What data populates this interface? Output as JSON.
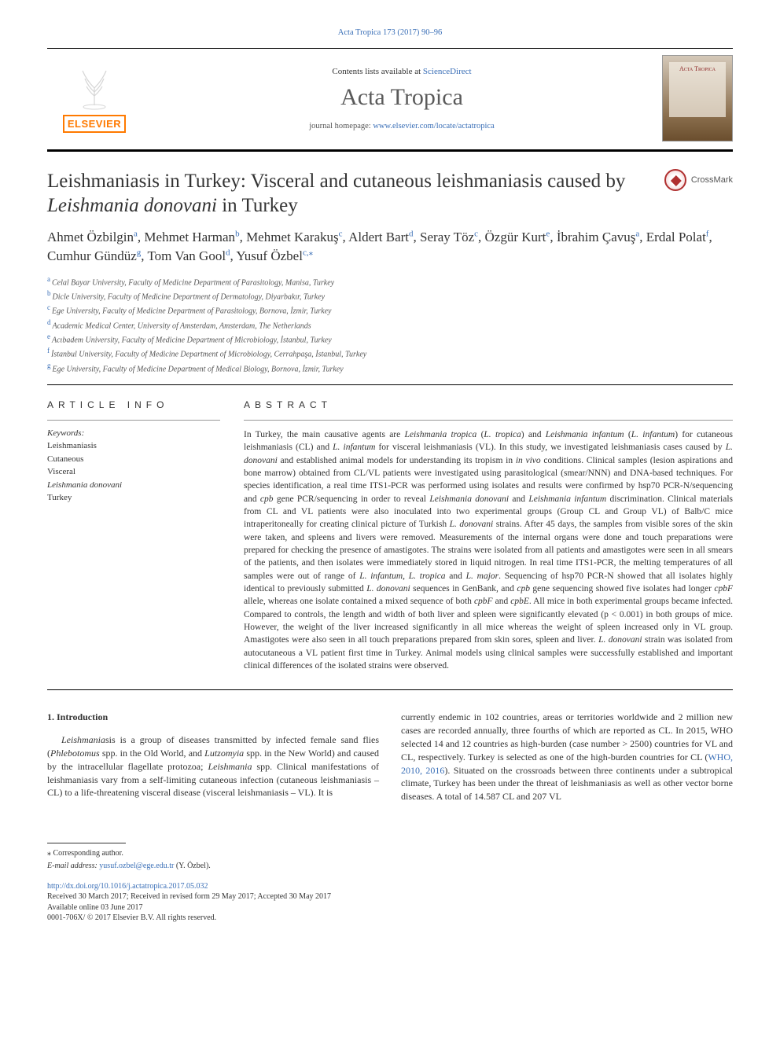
{
  "top_citation": {
    "text": "Acta Tropica 173 (2017) 90–96",
    "link_color": "#3a6fb7"
  },
  "header": {
    "contents_prefix": "Contents lists available at ",
    "contents_link": "ScienceDirect",
    "journal_name": "Acta Tropica",
    "homepage_prefix": "journal homepage: ",
    "homepage_link": "www.elsevier.com/locate/actatropica",
    "elsevier_text": "ELSEVIER",
    "cover_text": "Acta Tropica"
  },
  "crossmark_label": "CrossMark",
  "title_parts": {
    "p1": "Leishmaniasis in Turkey: Visceral and cutaneous leishmaniasis caused by ",
    "italic": "Leishmania donovani",
    "p2": " in Turkey"
  },
  "authors": [
    {
      "name": "Ahmet Özbilgin",
      "sup": "a"
    },
    {
      "name": "Mehmet Harman",
      "sup": "b"
    },
    {
      "name": "Mehmet Karakuş",
      "sup": "c"
    },
    {
      "name": "Aldert Bart",
      "sup": "d"
    },
    {
      "name": "Seray Töz",
      "sup": "c"
    },
    {
      "name": "Özgür Kurt",
      "sup": "e"
    },
    {
      "name": "İbrahim Çavuş",
      "sup": "a"
    },
    {
      "name": "Erdal Polat",
      "sup": "f"
    },
    {
      "name": "Cumhur Gündüz",
      "sup": "g"
    },
    {
      "name": "Tom Van Gool",
      "sup": "d"
    },
    {
      "name": "Yusuf Özbel",
      "sup": "c,",
      "corr": "⁎"
    }
  ],
  "affiliations": [
    {
      "sup": "a",
      "text": "Celal Bayar University, Faculty of Medicine Department of Parasitology, Manisa, Turkey"
    },
    {
      "sup": "b",
      "text": "Dicle University, Faculty of Medicine Department of Dermatology, Diyarbakır, Turkey"
    },
    {
      "sup": "c",
      "text": "Ege University, Faculty of Medicine Department of Parasitology, Bornova, İzmir, Turkey"
    },
    {
      "sup": "d",
      "text": "Academic Medical Center, University of Amsterdam, Amsterdam, The Netherlands"
    },
    {
      "sup": "e",
      "text": "Acıbadem University, Faculty of Medicine Department of Microbiology, İstanbul, Turkey"
    },
    {
      "sup": "f",
      "text": "İstanbul University, Faculty of Medicine Department of Microbiology, Cerrahpaşa, İstanbul, Turkey"
    },
    {
      "sup": "g",
      "text": "Ege University, Faculty of Medicine Department of Medical Biology, Bornova, İzmir, Turkey"
    }
  ],
  "article_info_heading": "ARTICLE INFO",
  "keywords_label": "Keywords:",
  "keywords": [
    "Leishmaniasis",
    "Cutaneous",
    "Visceral"
  ],
  "keywords_italic": "Leishmania donovani",
  "keywords_last": "Turkey",
  "abstract_heading": "ABSTRACT",
  "abstract_text": "In Turkey, the main causative agents are Leishmania tropica (L. tropica) and Leishmania infantum (L. infantum) for cutaneous leishmaniasis (CL) and L. infantum for visceral leishmaniasis (VL). In this study, we investigated leishmaniasis cases caused by L. donovani and established animal models for understanding its tropism in in vivo conditions. Clinical samples (lesion aspirations and bone marrow) obtained from CL/VL patients were investigated using parasitological (smear/NNN) and DNA-based techniques. For species identification, a real time ITS1-PCR was performed using isolates and results were confirmed by hsp70 PCR-N/sequencing and cpb gene PCR/sequencing in order to reveal Leishmania donovani and Leishmania infantum discrimination. Clinical materials from CL and VL patients were also inoculated into two experimental groups (Group CL and Group VL) of Balb/C mice intraperitoneally for creating clinical picture of Turkish L. donovani strains. After 45 days, the samples from visible sores of the skin were taken, and spleens and livers were removed. Measurements of the internal organs were done and touch preparations were prepared for checking the presence of amastigotes. The strains were isolated from all patients and amastigotes were seen in all smears of the patients, and then isolates were immediately stored in liquid nitrogen. In real time ITS1-PCR, the melting temperatures of all samples were out of range of L. infantum, L. tropica and L. major. Sequencing of hsp70 PCR-N showed that all isolates highly identical to previously submitted L. donovani sequences in GenBank, and cpb gene sequencing showed five isolates had longer cpbF allele, whereas one isolate contained a mixed sequence of both cpbF and cpbE. All mice in both experimental groups became infected. Compared to controls, the length and width of both liver and spleen were significantly elevated (p < 0.001) in both groups of mice. However, the weight of the liver increased significantly in all mice whereas the weight of spleen increased only in VL group. Amastigotes were also seen in all touch preparations prepared from skin sores, spleen and liver. L. donovani strain was isolated from autocutaneous a VL patient first time in Turkey. Animal models using clinical samples were successfully established and important clinical differences of the isolated strains were observed.",
  "intro_heading": "1. Introduction",
  "intro_col1": "Leishmaniasis is a group of diseases transmitted by infected female sand flies (Phlebotomus spp. in the Old World, and Lutzomyia spp. in the New World) and caused by the intracellular flagellate protozoa; Leishmania spp. Clinical manifestations of leishmaniasis vary from a self-limiting cutaneous infection (cutaneous leishmaniasis – CL) to a life-threatening visceral disease (visceral leishmaniasis – VL). It is",
  "intro_col2_p1": "currently endemic in 102 countries, areas or territories worldwide and 2 million new cases are recorded annually, three fourths of which are reported as CL. In 2015, WHO selected 14 and 12 countries as high-burden (case number > 2500) countries for VL and CL, respectively. Turkey is selected as one of the high-burden countries for CL (",
  "intro_col2_link": "WHO, 2010, 2016",
  "intro_col2_p2": "). Situated on the crossroads between three continents under a subtropical climate, Turkey has been under the threat of leishmaniasis as well as other vector borne diseases. A total of 14.587 CL and 207 VL",
  "footer": {
    "corr_symbol": "⁎",
    "corr_text": " Corresponding author.",
    "email_label": "E-mail address: ",
    "email": "yusuf.ozbel@ege.edu.tr",
    "email_suffix": " (Y. Özbel).",
    "doi": "http://dx.doi.org/10.1016/j.actatropica.2017.05.032",
    "received": "Received 30 March 2017; Received in revised form 29 May 2017; Accepted 30 May 2017",
    "available": "Available online 03 June 2017",
    "copyright": "0001-706X/ © 2017 Elsevier B.V. All rights reserved."
  },
  "colors": {
    "link": "#3a6fb7",
    "text": "#333333",
    "elsevier": "#ff7a00",
    "background": "#ffffff"
  },
  "typography": {
    "title_fontsize": 25,
    "journal_fontsize": 30,
    "body_fontsize": 12,
    "abstract_fontsize": 11.5,
    "footer_fontsize": 10
  }
}
